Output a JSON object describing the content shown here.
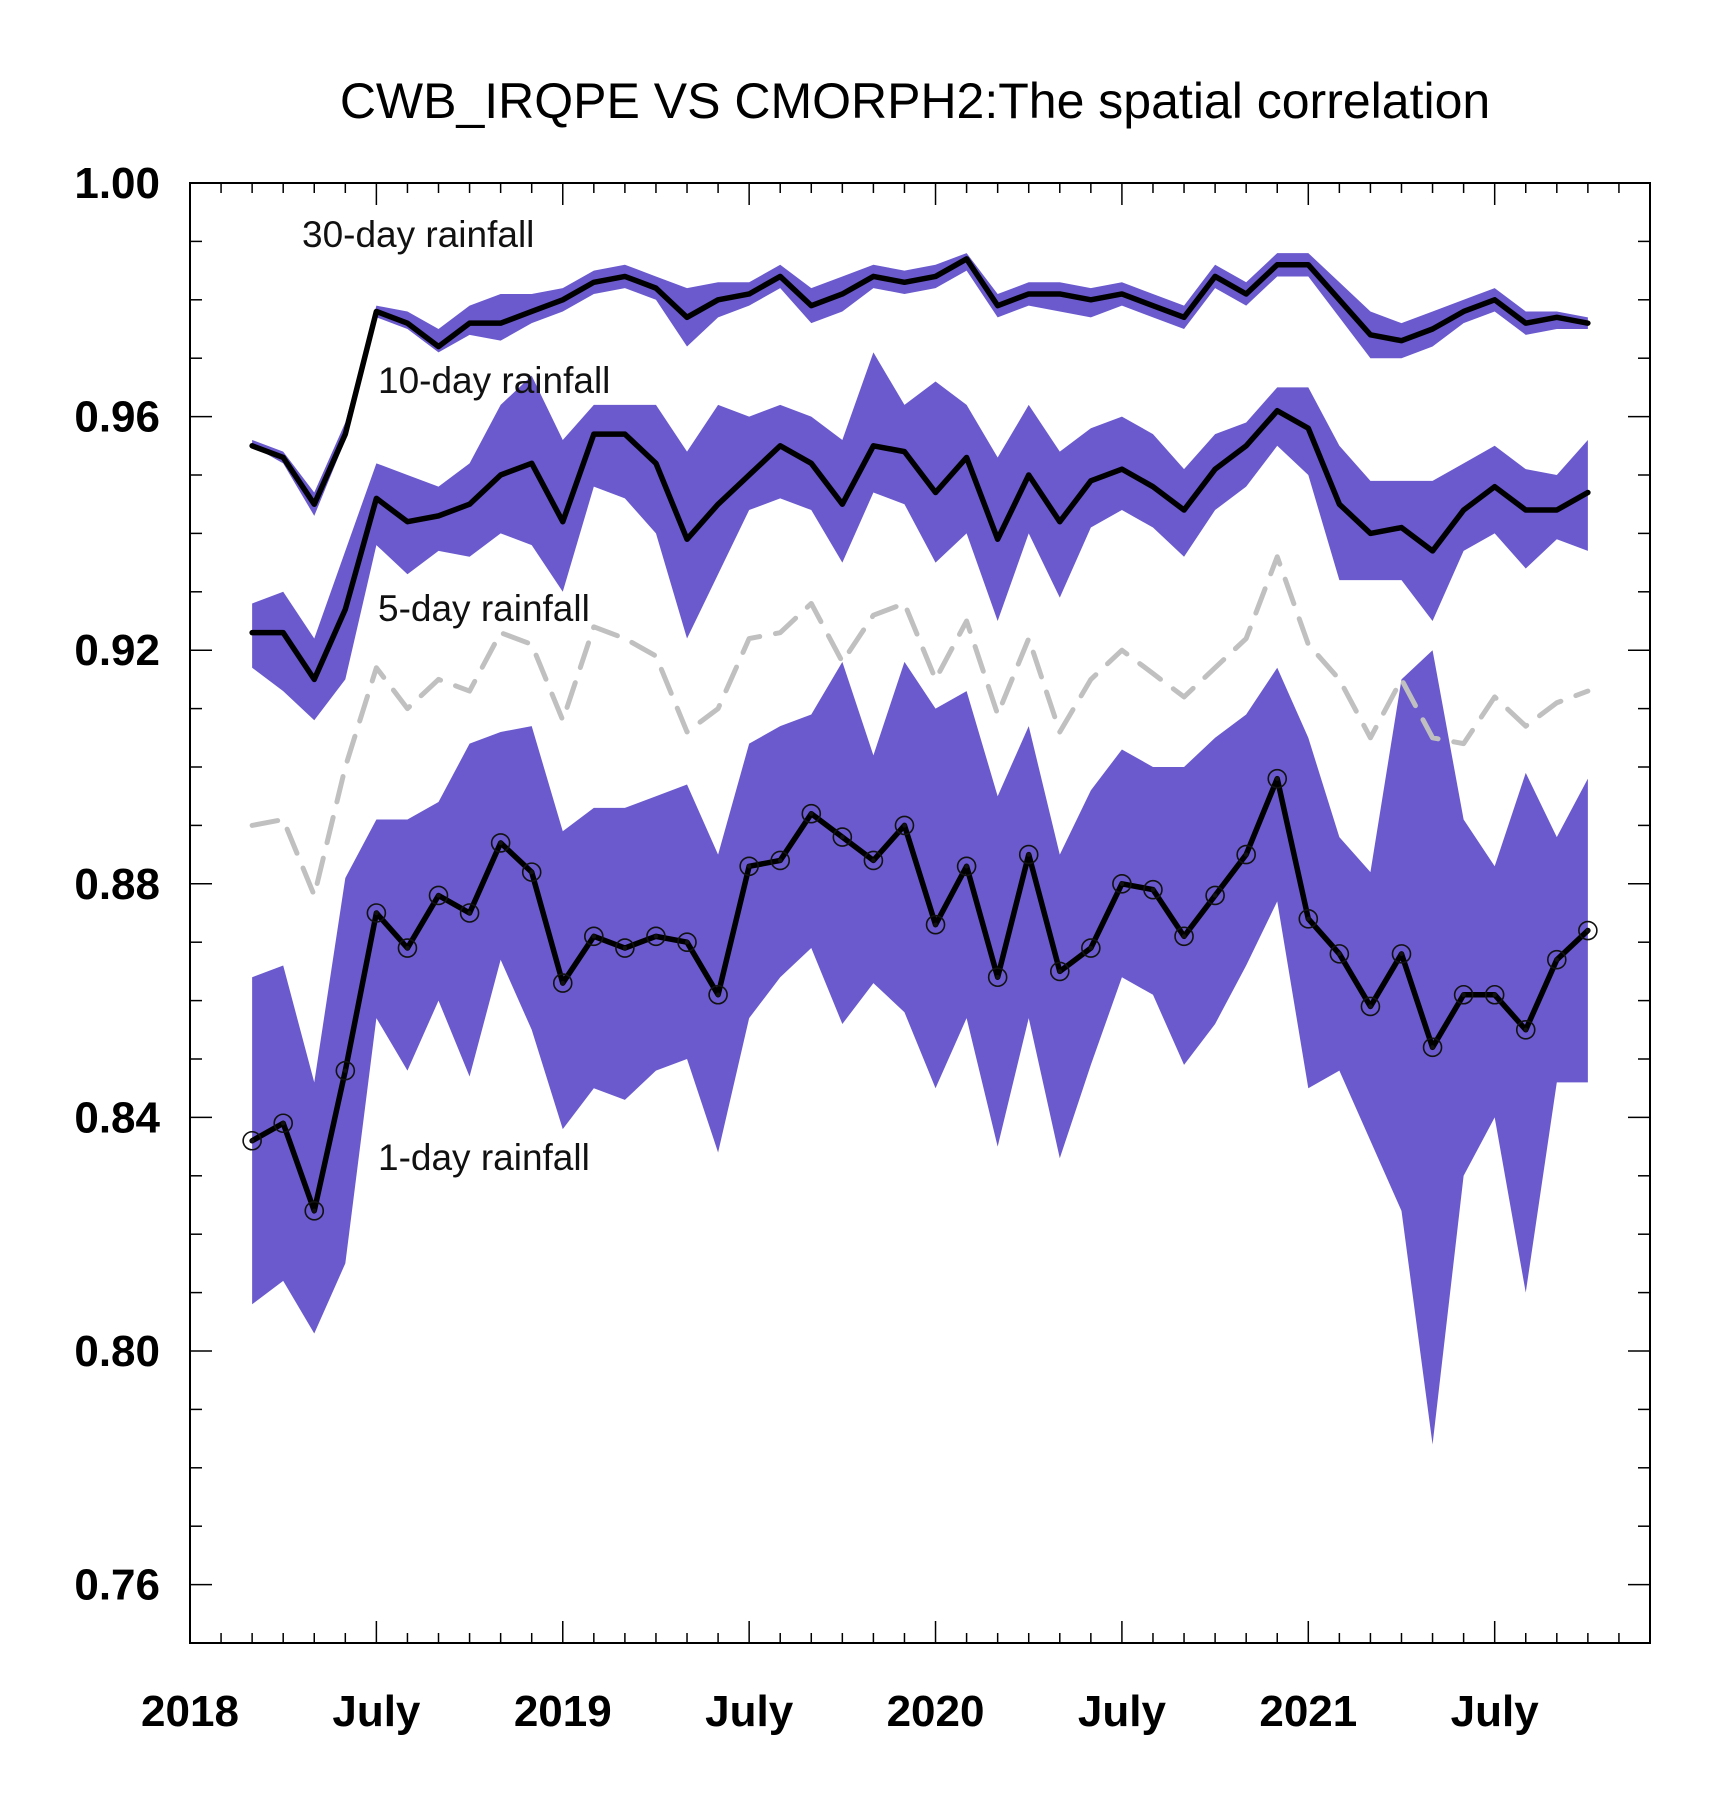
{
  "chart_data": {
    "type": "line",
    "title": "CWB_IRQPE VS CMORPH2:The spatial correlation",
    "xlabel": "",
    "ylabel": "",
    "ylim": [
      0.75,
      1.0
    ],
    "xlim_months": [
      "2018-01",
      "2021-12"
    ],
    "y_ticks": [
      "0.76",
      "0.80",
      "0.84",
      "0.88",
      "0.92",
      "0.96",
      "1.00"
    ],
    "x_ticks": [
      {
        "date": "2018-01",
        "label": "2018"
      },
      {
        "date": "2018-07",
        "label": "July"
      },
      {
        "date": "2019-01",
        "label": "2019"
      },
      {
        "date": "2019-07",
        "label": "July"
      },
      {
        "date": "2020-01",
        "label": "2020"
      },
      {
        "date": "2020-07",
        "label": "July"
      },
      {
        "date": "2021-01",
        "label": "2021"
      },
      {
        "date": "2021-07",
        "label": "July"
      }
    ],
    "grid": false,
    "months": [
      "2018-03",
      "2018-04",
      "2018-05",
      "2018-06",
      "2018-07",
      "2018-08",
      "2018-09",
      "2018-10",
      "2018-11",
      "2018-12",
      "2019-01",
      "2019-02",
      "2019-03",
      "2019-04",
      "2019-05",
      "2019-06",
      "2019-07",
      "2019-08",
      "2019-09",
      "2019-10",
      "2019-11",
      "2019-12",
      "2020-01",
      "2020-02",
      "2020-03",
      "2020-04",
      "2020-05",
      "2020-06",
      "2020-07",
      "2020-08",
      "2020-09",
      "2020-10",
      "2020-11",
      "2020-12",
      "2021-01",
      "2021-02",
      "2021-03",
      "2021-04",
      "2021-05",
      "2021-06",
      "2021-07",
      "2021-08",
      "2021-09",
      "2021-10"
    ],
    "series": [
      {
        "name": "30-day rainfall",
        "style": "solid",
        "color": "#000000",
        "markers": false,
        "values": [
          0.955,
          0.953,
          0.945,
          0.957,
          0.978,
          0.976,
          0.972,
          0.976,
          0.976,
          0.978,
          0.98,
          0.983,
          0.984,
          0.982,
          0.977,
          0.98,
          0.981,
          0.984,
          0.979,
          0.981,
          0.984,
          0.983,
          0.984,
          0.987,
          0.979,
          0.981,
          0.981,
          0.98,
          0.981,
          0.979,
          0.977,
          0.984,
          0.981,
          0.986,
          0.986,
          0.98,
          0.974,
          0.973,
          0.975,
          0.978,
          0.98,
          0.976,
          0.977,
          0.976
        ],
        "band_lower": [
          0.955,
          0.952,
          0.943,
          0.956,
          0.977,
          0.975,
          0.971,
          0.974,
          0.973,
          0.976,
          0.978,
          0.981,
          0.982,
          0.98,
          0.972,
          0.977,
          0.979,
          0.982,
          0.976,
          0.978,
          0.982,
          0.981,
          0.982,
          0.985,
          0.977,
          0.979,
          0.978,
          0.977,
          0.979,
          0.977,
          0.975,
          0.982,
          0.979,
          0.984,
          0.984,
          0.977,
          0.97,
          0.97,
          0.972,
          0.976,
          0.978,
          0.974,
          0.975,
          0.975
        ],
        "band_upper": [
          0.956,
          0.954,
          0.947,
          0.959,
          0.979,
          0.978,
          0.975,
          0.979,
          0.981,
          0.981,
          0.982,
          0.985,
          0.986,
          0.984,
          0.982,
          0.983,
          0.983,
          0.986,
          0.982,
          0.984,
          0.986,
          0.985,
          0.986,
          0.988,
          0.981,
          0.983,
          0.983,
          0.982,
          0.983,
          0.981,
          0.979,
          0.986,
          0.983,
          0.988,
          0.988,
          0.983,
          0.978,
          0.976,
          0.978,
          0.98,
          0.982,
          0.978,
          0.978,
          0.977
        ]
      },
      {
        "name": "10-day rainfall",
        "style": "solid",
        "color": "#000000",
        "markers": false,
        "values": [
          0.923,
          0.923,
          0.915,
          0.927,
          0.946,
          0.942,
          0.943,
          0.945,
          0.95,
          0.952,
          0.942,
          0.957,
          0.957,
          0.952,
          0.939,
          0.945,
          0.95,
          0.955,
          0.952,
          0.945,
          0.955,
          0.954,
          0.947,
          0.953,
          0.939,
          0.95,
          0.942,
          0.949,
          0.951,
          0.948,
          0.944,
          0.951,
          0.955,
          0.961,
          0.958,
          0.945,
          0.94,
          0.941,
          0.937,
          0.944,
          0.948,
          0.944,
          0.944,
          0.947
        ],
        "band_lower": [
          0.917,
          0.913,
          0.908,
          0.915,
          0.938,
          0.933,
          0.937,
          0.936,
          0.94,
          0.938,
          0.93,
          0.948,
          0.946,
          0.94,
          0.922,
          0.933,
          0.944,
          0.946,
          0.944,
          0.935,
          0.947,
          0.945,
          0.935,
          0.94,
          0.925,
          0.94,
          0.929,
          0.941,
          0.944,
          0.941,
          0.936,
          0.944,
          0.948,
          0.955,
          0.95,
          0.932,
          0.932,
          0.932,
          0.925,
          0.937,
          0.94,
          0.934,
          0.939,
          0.937
        ],
        "band_upper": [
          0.928,
          0.93,
          0.922,
          0.937,
          0.952,
          0.95,
          0.948,
          0.952,
          0.962,
          0.967,
          0.956,
          0.962,
          0.962,
          0.962,
          0.954,
          0.962,
          0.96,
          0.962,
          0.96,
          0.956,
          0.971,
          0.962,
          0.966,
          0.962,
          0.953,
          0.962,
          0.954,
          0.958,
          0.96,
          0.957,
          0.951,
          0.957,
          0.959,
          0.965,
          0.965,
          0.955,
          0.949,
          0.949,
          0.949,
          0.952,
          0.955,
          0.951,
          0.95,
          0.956
        ]
      },
      {
        "name": "5-day rainfall",
        "style": "dashed",
        "color": "#c0c0c0",
        "markers": false,
        "values": [
          0.89,
          0.891,
          0.878,
          0.9,
          0.917,
          0.91,
          0.915,
          0.913,
          0.923,
          0.921,
          0.908,
          0.924,
          0.922,
          0.919,
          0.906,
          0.91,
          0.922,
          0.923,
          0.928,
          0.918,
          0.926,
          0.928,
          0.915,
          0.925,
          0.909,
          0.922,
          0.906,
          0.915,
          0.92,
          0.916,
          0.912,
          0.917,
          0.922,
          0.936,
          0.921,
          0.915,
          0.905,
          0.915,
          0.905,
          0.904,
          0.912,
          0.907,
          0.911,
          0.913
        ]
      },
      {
        "name": "1-day rainfall",
        "style": "solid",
        "color": "#000000",
        "markers": true,
        "values": [
          0.836,
          0.839,
          0.824,
          0.848,
          0.875,
          0.869,
          0.878,
          0.875,
          0.887,
          0.882,
          0.863,
          0.871,
          0.869,
          0.871,
          0.87,
          0.861,
          0.883,
          0.884,
          0.892,
          0.888,
          0.884,
          0.89,
          0.873,
          0.883,
          0.864,
          0.885,
          0.865,
          0.869,
          0.88,
          0.879,
          0.871,
          0.878,
          0.885,
          0.898,
          0.874,
          0.868,
          0.859,
          0.868,
          0.852,
          0.861,
          0.861,
          0.855,
          0.867,
          0.872
        ],
        "band_lower": [
          0.808,
          0.812,
          0.803,
          0.815,
          0.857,
          0.848,
          0.86,
          0.847,
          0.867,
          0.855,
          0.838,
          0.845,
          0.843,
          0.848,
          0.85,
          0.834,
          0.857,
          0.864,
          0.869,
          0.856,
          0.863,
          0.858,
          0.845,
          0.857,
          0.835,
          0.857,
          0.833,
          0.849,
          0.864,
          0.861,
          0.849,
          0.856,
          0.866,
          0.877,
          0.845,
          0.848,
          0.836,
          0.824,
          0.784,
          0.83,
          0.84,
          0.81,
          0.846,
          0.846
        ],
        "band_upper": [
          0.864,
          0.866,
          0.846,
          0.881,
          0.891,
          0.891,
          0.894,
          0.904,
          0.906,
          0.907,
          0.889,
          0.893,
          0.893,
          0.895,
          0.897,
          0.885,
          0.904,
          0.907,
          0.909,
          0.918,
          0.902,
          0.918,
          0.91,
          0.913,
          0.895,
          0.907,
          0.885,
          0.896,
          0.903,
          0.9,
          0.9,
          0.905,
          0.909,
          0.917,
          0.905,
          0.888,
          0.882,
          0.915,
          0.92,
          0.891,
          0.883,
          0.899,
          0.888,
          0.898
        ]
      }
    ],
    "band_color": "#6a5acd",
    "annotations": [
      {
        "text": "30-day rainfall",
        "anchor_date": "2018-06",
        "anchor_value": 0.989
      },
      {
        "text": "10-day rainfall",
        "anchor_date": "2018-08",
        "anchor_value": 0.964
      },
      {
        "text": "5-day rainfall",
        "anchor_date": "2018-08",
        "anchor_value": 0.925
      },
      {
        "text": "1-day rainfall",
        "anchor_date": "2018-08",
        "anchor_value": 0.831
      }
    ]
  }
}
